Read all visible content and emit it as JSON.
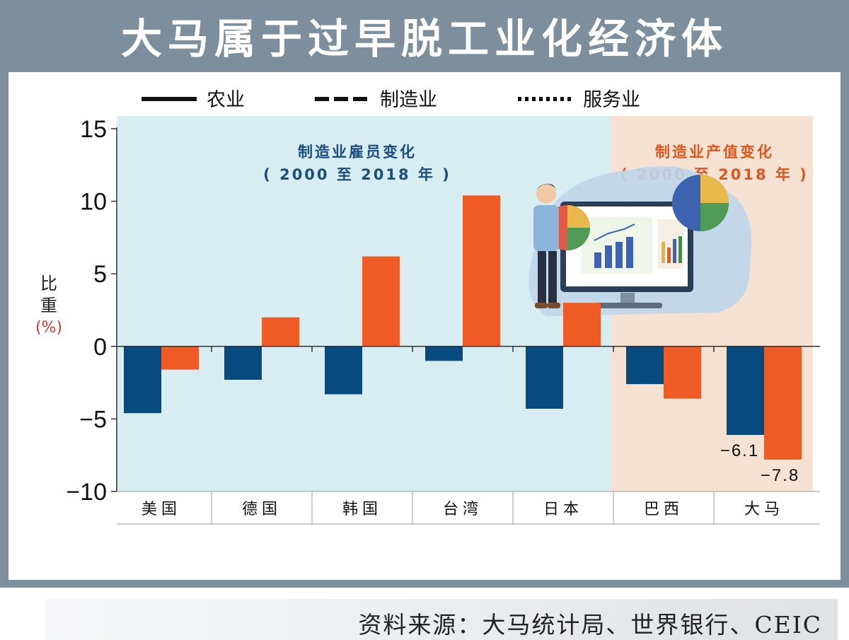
{
  "title": "大马属于过早脱工业化经济体",
  "source": "资料来源：大马统计局、世界银行、CEIC",
  "colors": {
    "frame": "#7d8e9c",
    "agriculture_bar": "#064a80",
    "manufacturing_bar": "#ef5b25",
    "left_panel_bg": "#d7edf1",
    "right_panel_bg": "#f6e2d2"
  },
  "icons": [
    "presenter-illustration"
  ],
  "chart_data": {
    "type": "bar",
    "legend": {
      "placement": "top",
      "entries": [
        {
          "label": "农业",
          "style": "solid"
        },
        {
          "label": "制造业",
          "style": "dashed"
        },
        {
          "label": "服务业",
          "style": "dotted"
        }
      ]
    },
    "panel_labels": {
      "left": {
        "line1": "制造业雇员变化",
        "line2": "( 2000 至 2018 年 )"
      },
      "right": {
        "line1": "制造业产值变化",
        "line2": "( 2000 至 2018 年 )"
      }
    },
    "ylabel": {
      "line1": "比",
      "line2": "重",
      "unit": "(%)"
    },
    "ylim": [
      -10,
      15
    ],
    "yticks": [
      "15",
      "10",
      "5",
      "0",
      "−5",
      "−10"
    ],
    "ytick_values": [
      15,
      10,
      5,
      0,
      -5,
      -10
    ],
    "categories": [
      "美国",
      "德国",
      "韩国",
      "台湾",
      "日本",
      "巴西",
      "大马"
    ],
    "series": [
      {
        "values": [
          -4.6,
          -2.3,
          -3.3,
          -1.0,
          -4.3,
          -2.6,
          -6.1
        ]
      },
      {
        "values": [
          -1.6,
          2.0,
          6.2,
          10.4,
          3.0,
          -3.6,
          -7.8
        ]
      }
    ],
    "data_labels": [
      {
        "text": "−6.1",
        "category": "大马",
        "series": 0
      },
      {
        "text": "−7.8",
        "category": "大马",
        "series": 1
      }
    ],
    "grid": false
  }
}
